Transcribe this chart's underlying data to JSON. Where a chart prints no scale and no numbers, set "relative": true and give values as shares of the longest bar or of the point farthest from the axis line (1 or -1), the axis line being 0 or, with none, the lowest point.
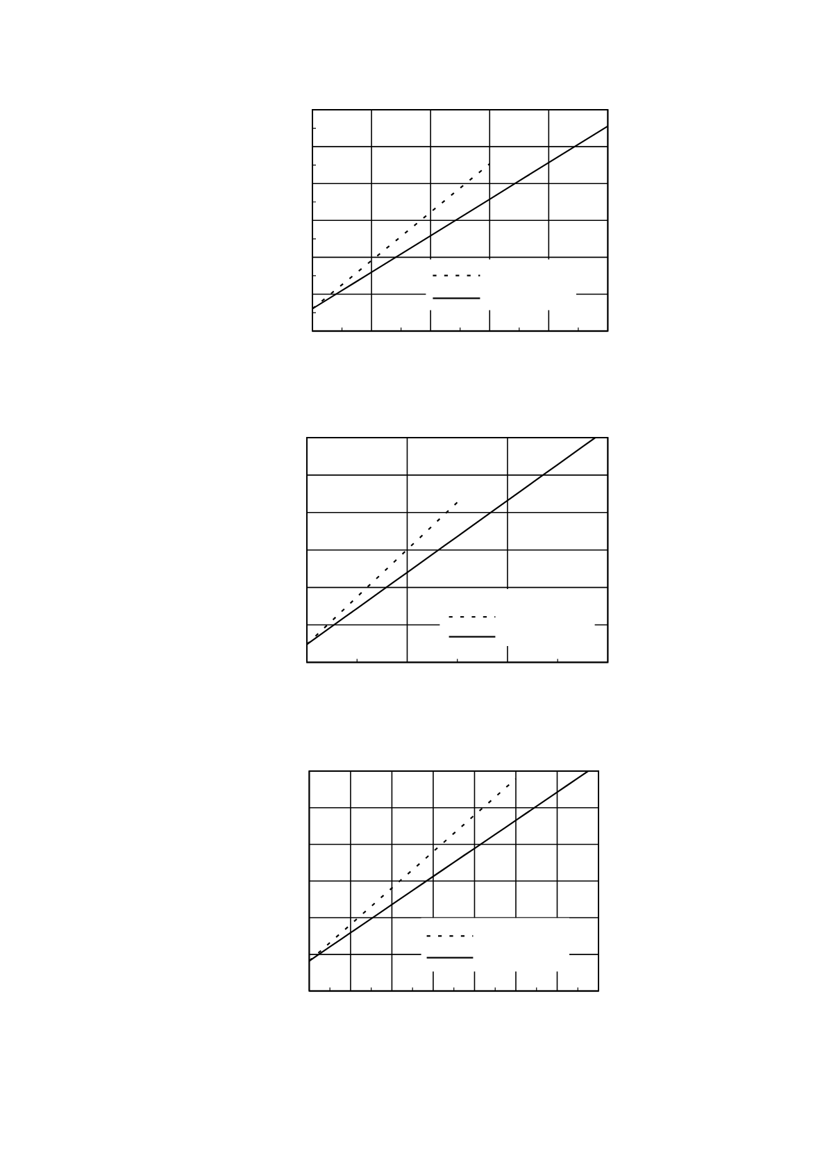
{
  "chart_data": [
    {
      "type": "line",
      "relative": true,
      "grid": true,
      "categories": [
        null,
        null,
        null,
        null,
        null,
        null,
        null,
        null,
        null,
        null,
        null
      ],
      "series": [
        {
          "color": "#000000",
          "line_style": "dashed",
          "values": [
            0.109,
            0.226,
            0.344,
            0.462,
            0.58,
            0.698,
            0.816,
            null,
            null,
            null,
            null
          ]
        },
        {
          "color": "#000000",
          "line_style": "solid",
          "values": [
            0.109,
            0.198,
            0.287,
            0.376,
            0.465,
            0.554,
            0.643,
            0.733,
            0.822,
            0.911,
            1.0
          ]
        }
      ]
    },
    {
      "type": "line",
      "relative": true,
      "grid": true,
      "categories": [
        null,
        null,
        null,
        null,
        null,
        null,
        null,
        null,
        null,
        null,
        null,
        null,
        null,
        null,
        null,
        null,
        null,
        null,
        null,
        null,
        null,
        null,
        null,
        null,
        null
      ],
      "series": [
        {
          "color": "#000000",
          "line_style": "dashed",
          "values": [
            0.08,
            0.133,
            0.185,
            0.238,
            0.291,
            0.344,
            0.396,
            0.449,
            0.502,
            0.554,
            0.607,
            0.66,
            0.712,
            null,
            null,
            null,
            null,
            null,
            null,
            null,
            null,
            null,
            null,
            null,
            null
          ]
        },
        {
          "color": "#000000",
          "line_style": "solid",
          "values": [
            0.08,
            0.12,
            0.16,
            0.2,
            0.24,
            0.28,
            0.32,
            0.36,
            0.4,
            0.44,
            0.48,
            0.52,
            0.56,
            0.6,
            0.64,
            0.68,
            0.72,
            0.76,
            0.8,
            0.84,
            0.88,
            0.92,
            0.96,
            1.0,
            null
          ]
        }
      ]
    },
    {
      "type": "line",
      "relative": true,
      "grid": true,
      "categories": [
        null,
        null,
        null,
        null,
        null,
        null,
        null,
        null,
        null,
        null,
        null,
        null,
        null,
        null,
        null,
        null,
        null,
        null,
        null,
        null,
        null,
        null,
        null,
        null,
        null,
        null,
        null,
        null,
        null
      ],
      "series": [
        {
          "color": "#000000",
          "line_style": "dashed",
          "values": [
            0.137,
            0.178,
            0.22,
            0.261,
            0.302,
            0.344,
            0.385,
            0.427,
            0.468,
            0.51,
            0.551,
            0.592,
            0.634,
            0.675,
            0.717,
            0.758,
            0.8,
            0.841,
            0.882,
            0.924,
            0.965,
            null,
            null,
            null,
            null,
            null,
            null,
            null,
            null
          ]
        },
        {
          "color": "#000000",
          "line_style": "solid",
          "values": [
            0.137,
            0.169,
            0.201,
            0.233,
            0.265,
            0.297,
            0.329,
            0.361,
            0.393,
            0.425,
            0.457,
            0.489,
            0.521,
            0.553,
            0.585,
            0.617,
            0.648,
            0.68,
            0.712,
            0.744,
            0.776,
            0.808,
            0.84,
            0.872,
            0.904,
            0.936,
            0.968,
            1.0,
            null
          ]
        }
      ]
    }
  ]
}
